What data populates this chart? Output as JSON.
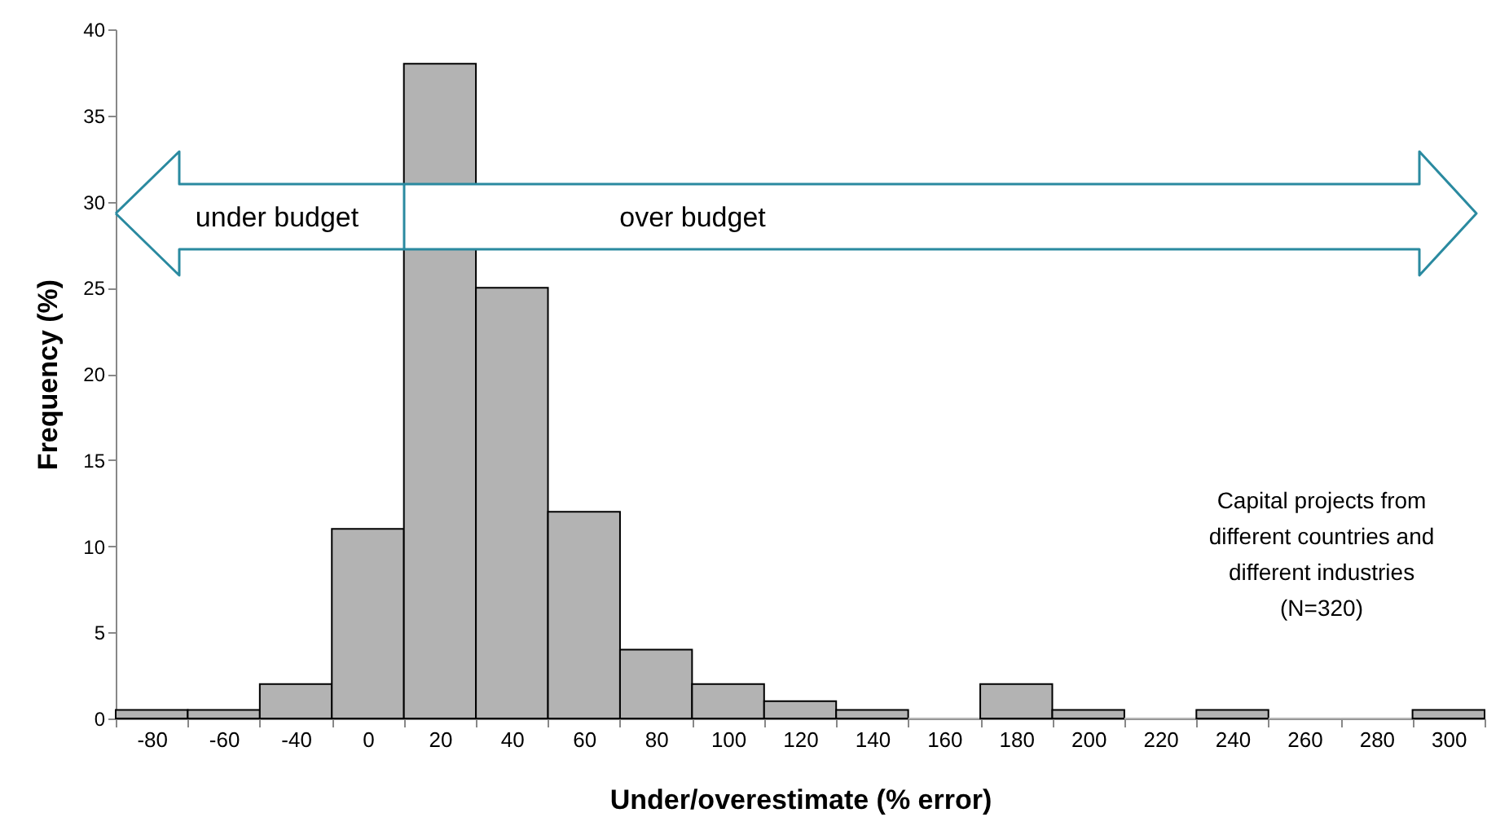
{
  "chart_data": {
    "type": "bar",
    "xlabel": "Under/overestimate (% error)",
    "ylabel": "Frequency (%)",
    "categories": [
      "-80",
      "-60",
      "-40",
      "0",
      "20",
      "40",
      "60",
      "80",
      "100",
      "120",
      "140",
      "160",
      "180",
      "200",
      "220",
      "240",
      "260",
      "280",
      "300"
    ],
    "values": [
      0.5,
      0.5,
      2,
      11,
      38,
      25,
      12,
      4,
      2,
      1,
      0.5,
      0,
      2,
      0.5,
      0,
      0.5,
      0,
      0,
      0.5
    ],
    "color": "#b3b3b3",
    "ylim": [
      0,
      40
    ],
    "yticks": [
      0,
      5,
      10,
      15,
      20,
      25,
      30,
      35,
      40
    ],
    "grid": false,
    "annotations": [
      "under budget",
      "over budget",
      "Capital projects from\ndifferent countries and\ndifferent industries\n(N=320)"
    ]
  }
}
